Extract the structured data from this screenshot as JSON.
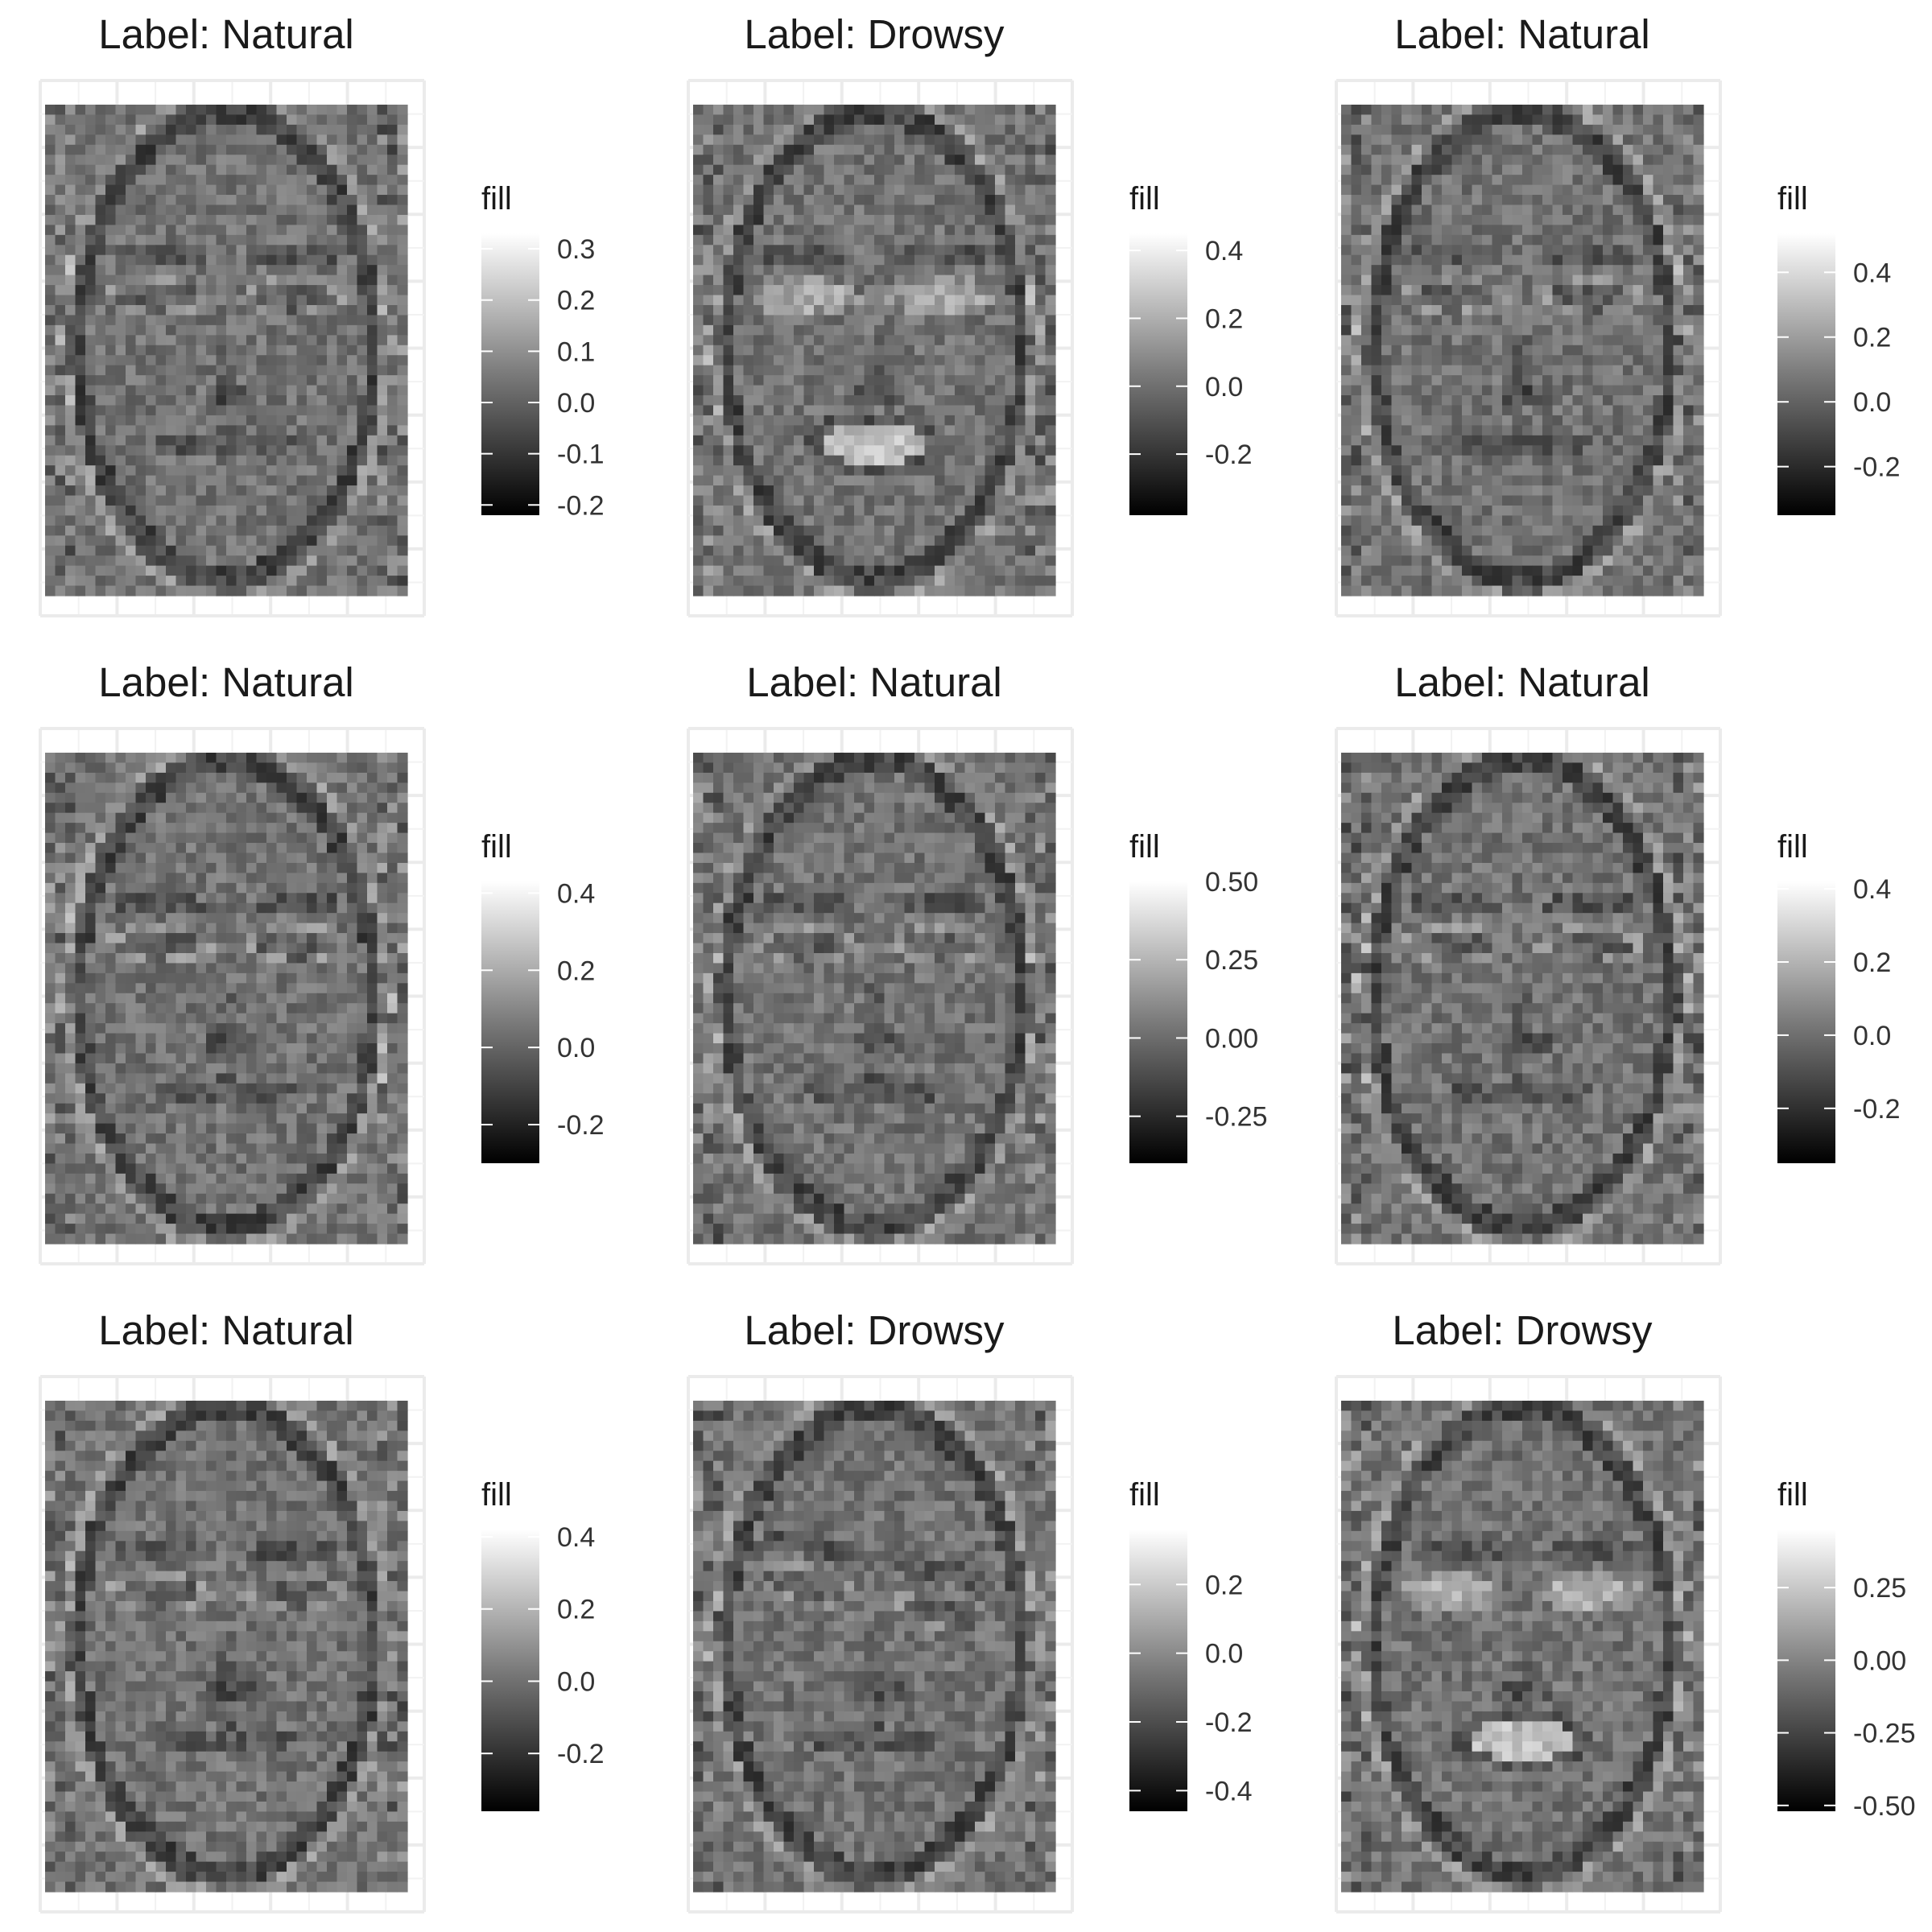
{
  "chart_data": [
    {
      "type": "heatmap",
      "title": "Label: Natural",
      "legend": {
        "title": "fill",
        "ticks": [
          "0.3",
          "0.2",
          "0.1",
          "0.0",
          "-0.1",
          "-0.2"
        ],
        "tick_values": [
          0.3,
          0.2,
          0.1,
          0.0,
          -0.1,
          -0.2
        ],
        "range": [
          -0.22,
          0.33
        ]
      },
      "seed": 11,
      "face": "neutral"
    },
    {
      "type": "heatmap",
      "title": "Label: Drowsy",
      "legend": {
        "title": "fill",
        "ticks": [
          "0.4",
          "0.2",
          "0.0",
          "-0.2"
        ],
        "tick_values": [
          0.4,
          0.2,
          0.0,
          -0.2
        ],
        "range": [
          -0.38,
          0.45
        ]
      },
      "seed": 23,
      "face": "yawn"
    },
    {
      "type": "heatmap",
      "title": "Label: Natural",
      "legend": {
        "title": "fill",
        "ticks": [
          "0.4",
          "0.2",
          "0.0",
          "-0.2"
        ],
        "tick_values": [
          0.4,
          0.2,
          0.0,
          -0.2
        ],
        "range": [
          -0.35,
          0.52
        ]
      },
      "seed": 37,
      "face": "neutral"
    },
    {
      "type": "heatmap",
      "title": "Label: Natural",
      "legend": {
        "title": "fill",
        "ticks": [
          "0.4",
          "0.2",
          "0.0",
          "-0.2"
        ],
        "tick_values": [
          0.4,
          0.2,
          0.0,
          -0.2
        ],
        "range": [
          -0.3,
          0.43
        ]
      },
      "seed": 41,
      "face": "neutral"
    },
    {
      "type": "heatmap",
      "title": "Label: Natural",
      "legend": {
        "title": "fill",
        "ticks": [
          "0.50",
          "0.25",
          "0.00",
          "-0.25"
        ],
        "tick_values": [
          0.5,
          0.25,
          0.0,
          -0.25
        ],
        "range": [
          -0.4,
          0.5
        ]
      },
      "seed": 53,
      "face": "neutral"
    },
    {
      "type": "heatmap",
      "title": "Label: Natural",
      "legend": {
        "title": "fill",
        "ticks": [
          "0.4",
          "0.2",
          "0.0",
          "-0.2"
        ],
        "tick_values": [
          0.4,
          0.2,
          0.0,
          -0.2
        ],
        "range": [
          -0.35,
          0.42
        ]
      },
      "seed": 67,
      "face": "neutral"
    },
    {
      "type": "heatmap",
      "title": "Label: Natural",
      "legend": {
        "title": "fill",
        "ticks": [
          "0.4",
          "0.2",
          "0.0",
          "-0.2"
        ],
        "tick_values": [
          0.4,
          0.2,
          0.0,
          -0.2
        ],
        "range": [
          -0.36,
          0.42
        ]
      },
      "seed": 71,
      "face": "neutral"
    },
    {
      "type": "heatmap",
      "title": "Label: Drowsy",
      "legend": {
        "title": "fill",
        "ticks": [
          "0.2",
          "0.0",
          "-0.2",
          "-0.4"
        ],
        "tick_values": [
          0.2,
          0.0,
          -0.2,
          -0.4
        ],
        "range": [
          -0.46,
          0.36
        ]
      },
      "seed": 83,
      "face": "tilted"
    },
    {
      "type": "heatmap",
      "title": "Label: Drowsy",
      "legend": {
        "title": "fill",
        "ticks": [
          "0.25",
          "0.00",
          "-0.25",
          "-0.50"
        ],
        "tick_values": [
          0.25,
          0.0,
          -0.25,
          -0.5
        ],
        "range": [
          -0.52,
          0.45
        ]
      },
      "seed": 97,
      "face": "yawn"
    }
  ]
}
